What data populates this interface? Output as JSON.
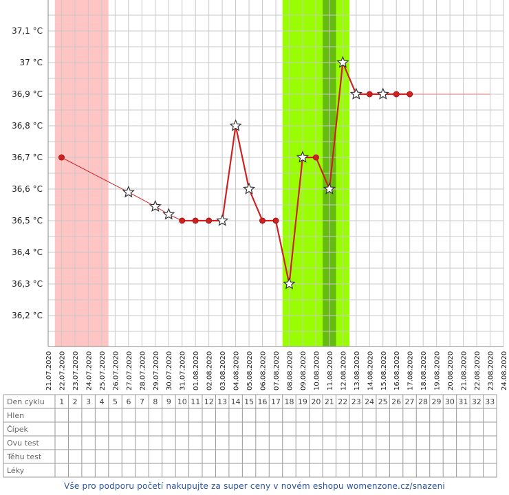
{
  "chart_data": {
    "type": "line",
    "y_unit_suffix": " °C",
    "ylim": [
      36.1,
      37.2
    ],
    "y_ticks": [
      {
        "value": 37.1,
        "label": "37,1 °C"
      },
      {
        "value": 37.0,
        "label": "37 °C"
      },
      {
        "value": 36.9,
        "label": "36,9 °C"
      },
      {
        "value": 36.8,
        "label": "36,8 °C"
      },
      {
        "value": 36.7,
        "label": "36,7 °C"
      },
      {
        "value": 36.6,
        "label": "36,6 °C"
      },
      {
        "value": 36.5,
        "label": "36,5 °C"
      },
      {
        "value": 36.4,
        "label": "36,4 °C"
      },
      {
        "value": 36.3,
        "label": "36,3 °C"
      },
      {
        "value": 36.2,
        "label": "36,2 °C"
      }
    ],
    "x_dates": [
      "21.07.2020",
      "22.07.2020",
      "23.07.2020",
      "24.07.2020",
      "25.07.2020",
      "26.07.2020",
      "27.07.2020",
      "28.07.2020",
      "29.07.2020",
      "30.07.2020",
      "31.07.2020",
      "01.08.2020",
      "02.08.2020",
      "03.08.2020",
      "04.08.2020",
      "05.08.2020",
      "06.08.2020",
      "07.08.2020",
      "08.08.2020",
      "09.08.2020",
      "10.08.2020",
      "11.08.2020",
      "12.08.2020",
      "13.08.2020",
      "14.08.2020",
      "15.08.2020",
      "16.08.2020",
      "17.08.2020",
      "18.08.2020",
      "19.08.2020",
      "20.08.2020",
      "21.08.2020",
      "22.08.2020",
      "23.08.2020",
      "24.08.2020"
    ],
    "shaded_ranges": [
      {
        "from_day": 1,
        "to_day": 4,
        "color": "#ffc4c4",
        "meaning": "menstruation"
      },
      {
        "from_day": 18,
        "to_day": 22,
        "color": "#99ff00",
        "meaning": "fertile"
      },
      {
        "from_day": 21,
        "to_day": 21,
        "color": "#66bb11",
        "meaning": "ovulation"
      }
    ],
    "points": [
      {
        "day": 1,
        "temp": 36.7,
        "marker": "dot"
      },
      {
        "day": 6,
        "temp": 36.59,
        "marker": "star"
      },
      {
        "day": 8,
        "temp": 36.545,
        "marker": "star"
      },
      {
        "day": 9,
        "temp": 36.52,
        "marker": "star"
      },
      {
        "day": 10,
        "temp": 36.5,
        "marker": "dot"
      },
      {
        "day": 11,
        "temp": 36.5,
        "marker": "dot"
      },
      {
        "day": 12,
        "temp": 36.5,
        "marker": "dot"
      },
      {
        "day": 13,
        "temp": 36.5,
        "marker": "star"
      },
      {
        "day": 14,
        "temp": 36.8,
        "marker": "star"
      },
      {
        "day": 15,
        "temp": 36.6,
        "marker": "star"
      },
      {
        "day": 16,
        "temp": 36.5,
        "marker": "dot"
      },
      {
        "day": 17,
        "temp": 36.5,
        "marker": "dot"
      },
      {
        "day": 18,
        "temp": 36.3,
        "marker": "star"
      },
      {
        "day": 19,
        "temp": 36.7,
        "marker": "star"
      },
      {
        "day": 20,
        "temp": 36.7,
        "marker": "dot"
      },
      {
        "day": 21,
        "temp": 36.6,
        "marker": "star"
      },
      {
        "day": 22,
        "temp": 37.0,
        "marker": "star"
      },
      {
        "day": 23,
        "temp": 36.9,
        "marker": "star"
      },
      {
        "day": 24,
        "temp": 36.9,
        "marker": "dot"
      },
      {
        "day": 25,
        "temp": 36.9,
        "marker": "star"
      },
      {
        "day": 26,
        "temp": 36.9,
        "marker": "dot"
      },
      {
        "day": 27,
        "temp": 36.9,
        "marker": "dot"
      }
    ],
    "thin_segments": [
      [
        1,
        6
      ],
      [
        6,
        8
      ],
      [
        8,
        9
      ],
      [
        9,
        10
      ]
    ],
    "coverline": {
      "temp": 36.9,
      "from_day": 27,
      "to_day": 33,
      "color": "#f0a0a0"
    },
    "line_color": "#cc2222",
    "grid": true
  },
  "table": {
    "row_labels": [
      "Den cyklu",
      "Hlen",
      "Čípek",
      "Ovu test",
      "Těhu test",
      "Léky"
    ],
    "days": [
      "1",
      "2",
      "3",
      "4",
      "5",
      "6",
      "7",
      "8",
      "9",
      "10",
      "11",
      "12",
      "13",
      "14",
      "15",
      "16",
      "17",
      "18",
      "19",
      "20",
      "21",
      "22",
      "23",
      "24",
      "25",
      "26",
      "27",
      "28",
      "29",
      "30",
      "31",
      "32",
      "33"
    ]
  },
  "footer": {
    "text": "Vše pro podporu početí nakupujte za super ceny v novém eshopu womenzone.cz/snazeni"
  }
}
